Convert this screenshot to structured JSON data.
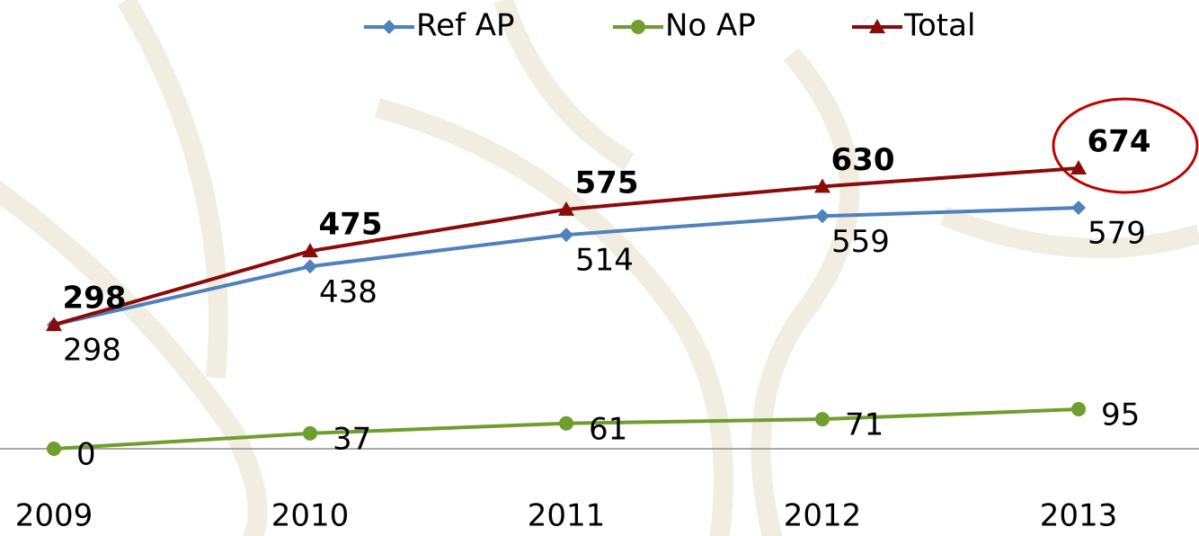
{
  "chart_data": {
    "type": "line",
    "categories": [
      "2009",
      "2010",
      "2011",
      "2012",
      "2013"
    ],
    "series": [
      {
        "name": "Ref AP",
        "color": "#4f81bd",
        "marker": "diamond",
        "values": [
          298,
          438,
          514,
          559,
          579
        ]
      },
      {
        "name": "No AP",
        "color": "#6f9e2f",
        "marker": "circle",
        "values": [
          0,
          37,
          61,
          71,
          95
        ]
      },
      {
        "name": "Total",
        "color": "#8b0a0a",
        "marker": "triangle",
        "bold_labels": true,
        "values": [
          298,
          475,
          575,
          630,
          674
        ]
      }
    ],
    "ylim": [
      0,
      700
    ],
    "legend": "top"
  }
}
